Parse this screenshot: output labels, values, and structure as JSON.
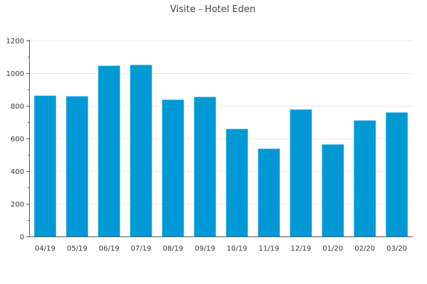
{
  "chart_data": {
    "type": "bar",
    "title": "Visite - Hotel Eden",
    "xlabel": "",
    "ylabel": "",
    "categories": [
      "04/19",
      "05/19",
      "06/19",
      "07/19",
      "08/19",
      "09/19",
      "10/19",
      "11/19",
      "12/19",
      "01/20",
      "02/20",
      "03/20"
    ],
    "values": [
      862,
      858,
      1045,
      1050,
      837,
      854,
      658,
      537,
      777,
      563,
      710,
      759
    ],
    "ylim": [
      0,
      1200
    ],
    "yticks": [
      0,
      200,
      400,
      600,
      800,
      1000,
      1200
    ],
    "grid": true,
    "legend": "none",
    "bar_color": "#0099d6"
  }
}
